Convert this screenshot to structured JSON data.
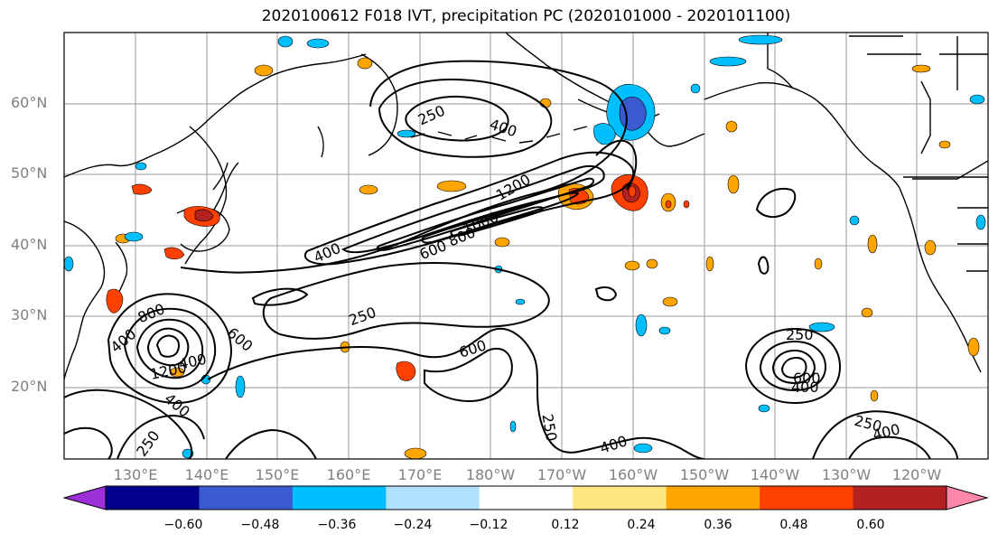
{
  "title": "2020100612 F018 IVT, precipitation PC (2020101000 - 2020101100)",
  "map": {
    "lat_labels": [
      "60°N",
      "50°N",
      "40°N",
      "30°N",
      "20°N"
    ],
    "lon_labels": [
      "130°E",
      "140°E",
      "150°E",
      "160°E",
      "170°E",
      "180°W",
      "170°W",
      "160°W",
      "150°W",
      "140°W",
      "130°W",
      "120°W"
    ],
    "contour_labels": [
      {
        "text": "250",
        "id": "c250a"
      },
      {
        "text": "400",
        "id": "c400a"
      },
      {
        "text": "400",
        "id": "c400b"
      },
      {
        "text": "600",
        "id": "c600a"
      },
      {
        "text": "800",
        "id": "c800a"
      },
      {
        "text": "1000",
        "id": "c1000a"
      },
      {
        "text": "1200",
        "id": "c1200a"
      },
      {
        "text": "250",
        "id": "c250b"
      },
      {
        "text": "400",
        "id": "c400c"
      },
      {
        "text": "800",
        "id": "c800b"
      },
      {
        "text": "600",
        "id": "c600b"
      },
      {
        "text": "1200",
        "id": "c1200b"
      },
      {
        "text": "400",
        "id": "c400d"
      },
      {
        "text": "400",
        "id": "c400e"
      },
      {
        "text": "250",
        "id": "c250c"
      },
      {
        "text": "600",
        "id": "c600c"
      },
      {
        "text": "250",
        "id": "c250d"
      },
      {
        "text": "400",
        "id": "c400f"
      },
      {
        "text": "250",
        "id": "c250e"
      },
      {
        "text": "600",
        "id": "c600d"
      },
      {
        "text": "400",
        "id": "c400g"
      },
      {
        "text": "250",
        "id": "c250f"
      },
      {
        "text": "400",
        "id": "c400h"
      }
    ]
  },
  "colorbar": {
    "ticks": [
      "−0.60",
      "−0.48",
      "−0.36",
      "−0.24",
      "−0.12",
      "0.12",
      "0.24",
      "0.36",
      "0.48",
      "0.60"
    ],
    "colors": [
      "#9b30d9",
      "#00008b",
      "#3a5bd0",
      "#00bfff",
      "#b0e2ff",
      "#ffffff",
      "#ffe680",
      "#ffa500",
      "#ff4000",
      "#b22222",
      "#ff88aa"
    ]
  }
}
